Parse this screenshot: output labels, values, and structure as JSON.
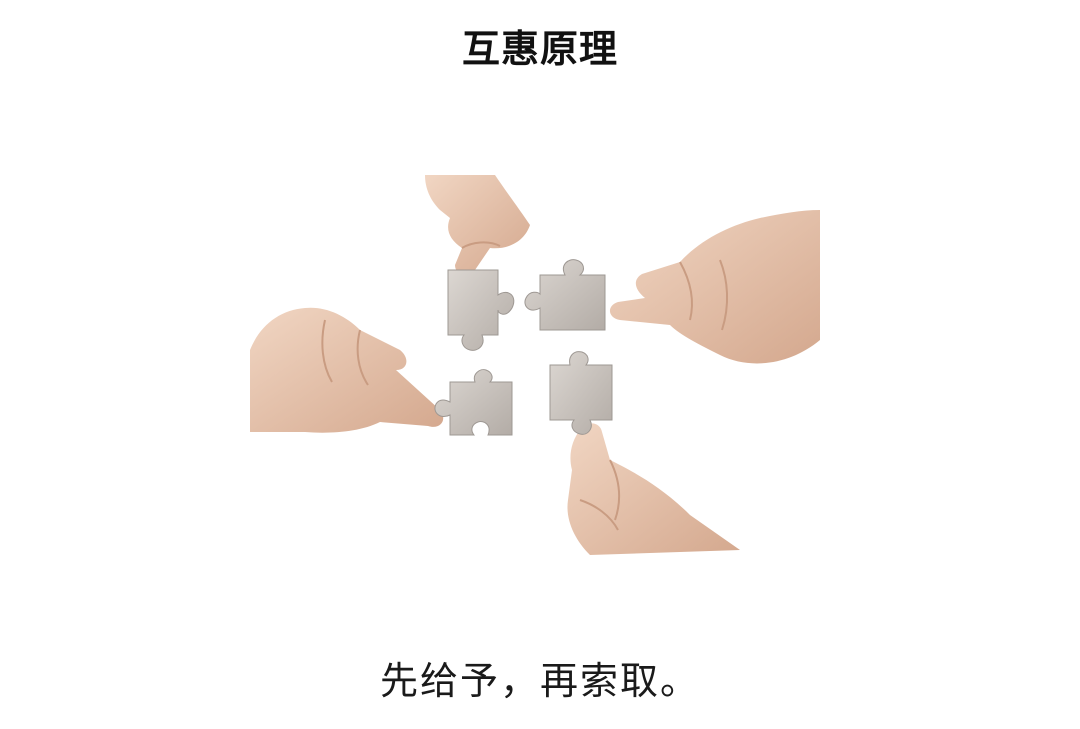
{
  "slide": {
    "title": "互惠原理",
    "caption": "先给予，再索取。"
  },
  "illustration": {
    "description_icon": "hands-holding-puzzle-pieces-icon",
    "skin_color": "#e6c3ad",
    "skin_shadow": "#c99c82",
    "piece_color": "#cfc9c4",
    "piece_shadow": "#9e9893"
  }
}
